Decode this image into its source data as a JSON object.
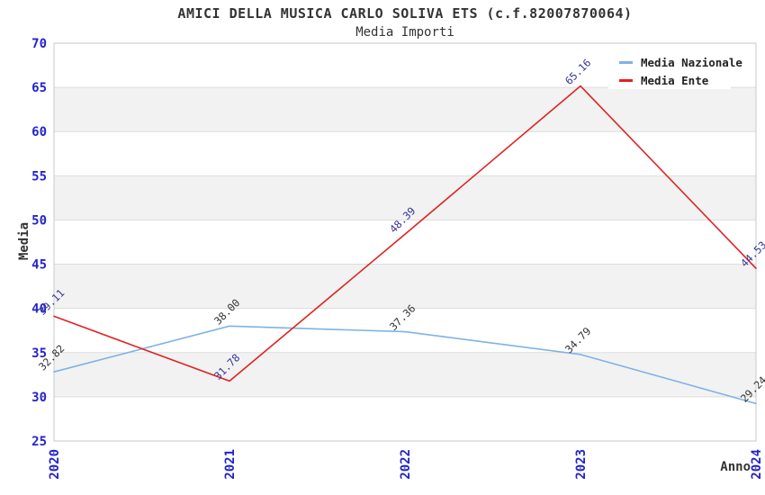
{
  "chart_data": {
    "type": "line",
    "title": "AMICI DELLA MUSICA CARLO SOLIVA ETS (c.f.82007870064)",
    "subtitle": "Media Importi",
    "categories": [
      "2020",
      "2021",
      "2022",
      "2023",
      "2024"
    ],
    "series": [
      {
        "name": "Media Nazionale",
        "color": "#7FB2E5",
        "label_color": "#333333",
        "values": [
          32.82,
          38.0,
          37.36,
          34.79,
          29.24
        ]
      },
      {
        "name": "Media Ente",
        "color": "#E02222",
        "label_color": "#333399",
        "values": [
          39.11,
          31.78,
          48.39,
          65.16,
          44.53
        ]
      }
    ],
    "xlabel": "Anno",
    "ylabel": "Media",
    "ylim": [
      25,
      70
    ],
    "ytick_step": 5,
    "grid": true,
    "legend_position": "top-right",
    "band_colors": [
      "#FFFFFF",
      "#F2F2F2"
    ],
    "tick_label_color": "#2424CC",
    "gridline_color": "#DDDDDD",
    "border_color": "#C8C8C8",
    "value_label_decimals": 2
  }
}
